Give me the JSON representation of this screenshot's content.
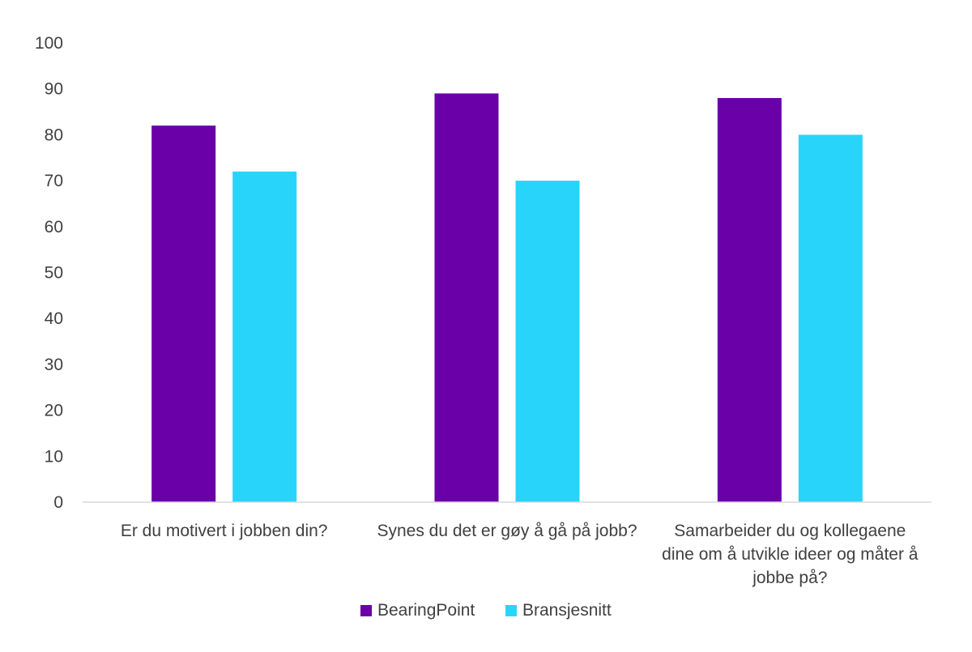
{
  "chart_data": {
    "type": "bar",
    "categories": [
      [
        "Er du motivert i jobben din?"
      ],
      [
        "Synes du det er gøy å gå på jobb?"
      ],
      [
        "Samarbeider du og kollegaene",
        "dine om å utvikle ideer og måter å",
        "jobbe på?"
      ]
    ],
    "series": [
      {
        "name": "BearingPoint",
        "values": [
          82,
          89,
          88
        ],
        "color": "#6a00a8"
      },
      {
        "name": "Bransjesnitt",
        "values": [
          72,
          70,
          80
        ],
        "color": "#29d4fb"
      }
    ],
    "ylim": [
      0,
      100
    ],
    "yticks": [
      0,
      10,
      20,
      30,
      40,
      50,
      60,
      70,
      80,
      90,
      100
    ],
    "grid": false,
    "legend": "bottom-center",
    "title": "",
    "xlabel": "",
    "ylabel": ""
  }
}
